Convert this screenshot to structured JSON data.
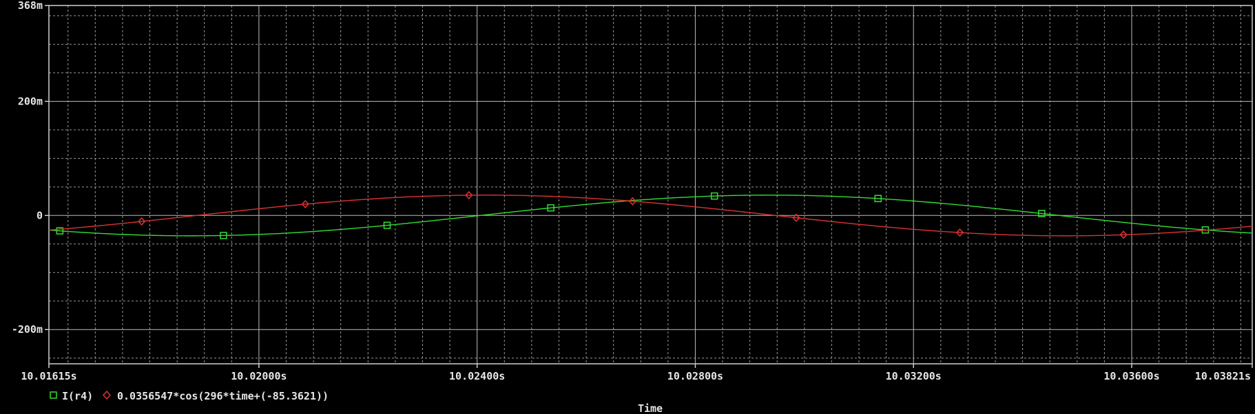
{
  "chart_data": {
    "type": "line",
    "xlabel": "Time",
    "ylabel": "",
    "xlim": [
      10.01615,
      10.03821
    ],
    "ylim": [
      -0.26,
      0.368
    ],
    "grid": true,
    "x_ticks": [
      {
        "value": 10.01615,
        "label": "10.01615s"
      },
      {
        "value": 10.02,
        "label": "10.02000s"
      },
      {
        "value": 10.024,
        "label": "10.02400s"
      },
      {
        "value": 10.028,
        "label": "10.02800s"
      },
      {
        "value": 10.032,
        "label": "10.03200s"
      },
      {
        "value": 10.036,
        "label": "10.03600s"
      },
      {
        "value": 10.03821,
        "label": "10.03821s"
      }
    ],
    "y_ticks": [
      {
        "value": 0.368,
        "label": "368m"
      },
      {
        "value": 0.2,
        "label": "200m"
      },
      {
        "value": 0,
        "label": "0"
      },
      {
        "value": -0.2,
        "label": "-200m"
      }
    ],
    "legend_position": "bottom-left",
    "series": [
      {
        "name": "I(r4)",
        "color": "#33dd33",
        "marker": "square",
        "function": {
          "amplitude": 0.0356547,
          "omega": 296,
          "phase_deg": -85.3621,
          "time_offset": -0.0052
        },
        "marker_x": [
          10.01635,
          10.01935,
          10.02235,
          10.02535,
          10.02835,
          10.03135,
          10.03435,
          10.03735
        ]
      },
      {
        "name": "0.0356547*cos(296*time+(-85.3621))",
        "color": "#dd3333",
        "marker": "diamond",
        "function": {
          "amplitude": 0.0356547,
          "omega": 296,
          "phase_deg": -85.3621,
          "time_offset": 0
        },
        "marker_x": [
          10.01785,
          10.02085,
          10.02385,
          10.02685,
          10.02985,
          10.03285,
          10.03585
        ]
      }
    ]
  }
}
